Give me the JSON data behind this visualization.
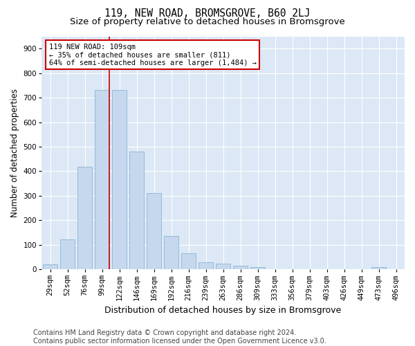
{
  "title": "119, NEW ROAD, BROMSGROVE, B60 2LJ",
  "subtitle": "Size of property relative to detached houses in Bromsgrove",
  "xlabel": "Distribution of detached houses by size in Bromsgrove",
  "ylabel": "Number of detached properties",
  "categories": [
    "29sqm",
    "52sqm",
    "76sqm",
    "99sqm",
    "122sqm",
    "146sqm",
    "169sqm",
    "192sqm",
    "216sqm",
    "239sqm",
    "263sqm",
    "286sqm",
    "309sqm",
    "333sqm",
    "356sqm",
    "379sqm",
    "403sqm",
    "426sqm",
    "449sqm",
    "473sqm",
    "496sqm"
  ],
  "values": [
    20,
    122,
    418,
    730,
    730,
    480,
    312,
    135,
    65,
    28,
    22,
    15,
    10,
    0,
    0,
    0,
    0,
    0,
    0,
    8,
    0
  ],
  "bar_color": "#c5d8ed",
  "bar_edge_color": "#8ab4d4",
  "marker_label": "119 NEW ROAD: 109sqm",
  "annotation_line1": "← 35% of detached houses are smaller (811)",
  "annotation_line2": "64% of semi-detached houses are larger (1,484) →",
  "annotation_box_facecolor": "#ffffff",
  "annotation_box_edgecolor": "#cc0000",
  "vline_color": "#cc0000",
  "vline_x": 3.43,
  "ylim": [
    0,
    950
  ],
  "yticks": [
    0,
    100,
    200,
    300,
    400,
    500,
    600,
    700,
    800,
    900
  ],
  "footer_line1": "Contains HM Land Registry data © Crown copyright and database right 2024.",
  "footer_line2": "Contains public sector information licensed under the Open Government Licence v3.0.",
  "bg_color": "#ffffff",
  "plot_bg_color": "#dce8f5",
  "grid_color": "#ffffff",
  "title_fontsize": 10.5,
  "subtitle_fontsize": 9.5,
  "ylabel_fontsize": 8.5,
  "xlabel_fontsize": 9,
  "tick_fontsize": 7.5,
  "annotation_fontsize": 7.5,
  "footer_fontsize": 7
}
